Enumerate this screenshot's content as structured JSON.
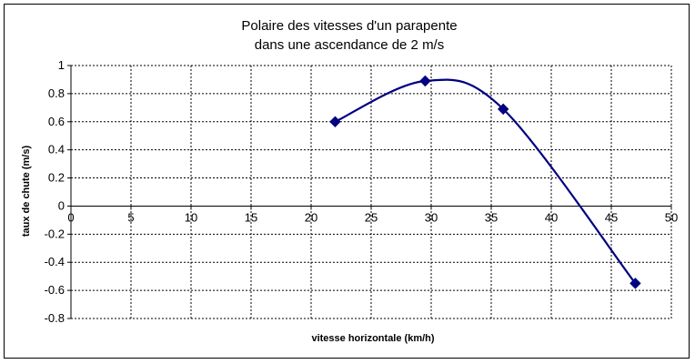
{
  "chart_data": {
    "type": "line",
    "title": [
      "Polaire des vitesses d'un parapente",
      "dans une ascendance de 2 m/s"
    ],
    "xlabel": "vitesse horizontale (km/h)",
    "ylabel": "taux de chute (m/s)",
    "xlim": [
      0,
      50
    ],
    "ylim": [
      -0.8,
      1
    ],
    "xticks": [
      "0",
      "5",
      "10",
      "15",
      "20",
      "25",
      "30",
      "35",
      "40",
      "45",
      "50"
    ],
    "yticks": [
      "-0.8",
      "-0.6",
      "-0.4",
      "-0.2",
      "0",
      "0.2",
      "0.4",
      "0.6",
      "0.8",
      "1"
    ],
    "grid": true,
    "legend": "none",
    "series": [
      {
        "color": "#000080",
        "marker": "diamond",
        "points": [
          {
            "x": 22,
            "y": 0.6
          },
          {
            "x": 29.5,
            "y": 0.89
          },
          {
            "x": 36,
            "y": 0.69
          },
          {
            "x": 47,
            "y": -0.55
          }
        ]
      }
    ]
  }
}
